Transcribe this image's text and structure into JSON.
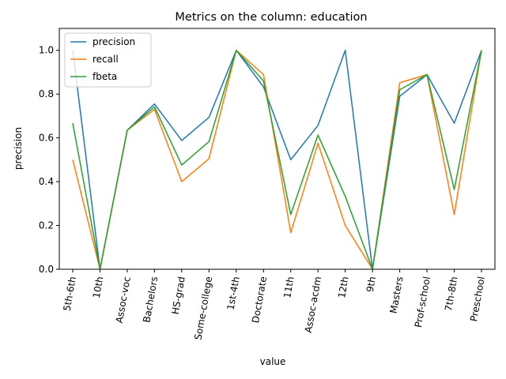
{
  "chart_data": {
    "type": "line",
    "title": "Metrics on the column: education",
    "xlabel": "value",
    "ylabel": "precision",
    "categories": [
      "5th-6th",
      "10th",
      "Assoc-voc",
      "Bachelors",
      "HS-grad",
      "Some-college",
      "1st-4th",
      "Doctorate",
      "11th",
      "Assoc-acdm",
      "12th",
      "9th",
      "Masters",
      "Prof-school",
      "7th-8th",
      "Preschool"
    ],
    "ylim": [
      0.0,
      1.1
    ],
    "yticks": [
      "0.0",
      "0.2",
      "0.4",
      "0.6",
      "0.8",
      "1.0"
    ],
    "grid": false,
    "legend_position": "top-left",
    "series": [
      {
        "name": "precision",
        "color": "#1f77b4",
        "values": [
          1.0,
          0.0,
          0.635,
          0.755,
          0.588,
          0.694,
          1.0,
          0.833,
          0.5,
          0.657,
          1.0,
          0.0,
          0.79,
          0.889,
          0.667,
          1.0
        ]
      },
      {
        "name": "recall",
        "color": "#ff7f0e",
        "values": [
          0.5,
          0.0,
          0.635,
          0.73,
          0.4,
          0.505,
          1.0,
          0.889,
          0.167,
          0.575,
          0.2,
          0.0,
          0.852,
          0.889,
          0.25,
          1.0
        ]
      },
      {
        "name": "fbeta",
        "color": "#2ca02c",
        "values": [
          0.667,
          0.0,
          0.635,
          0.742,
          0.476,
          0.583,
          1.0,
          0.86,
          0.25,
          0.613,
          0.333,
          0.0,
          0.82,
          0.889,
          0.364,
          1.0
        ]
      }
    ]
  }
}
